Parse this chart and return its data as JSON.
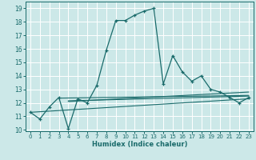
{
  "xlabel": "Humidex (Indice chaleur)",
  "background_color": "#cce8e8",
  "grid_color": "#ffffff",
  "line_color": "#1a6b6b",
  "xlim": [
    -0.5,
    23.5
  ],
  "ylim": [
    9.9,
    19.5
  ],
  "yticks": [
    10,
    11,
    12,
    13,
    14,
    15,
    16,
    17,
    18,
    19
  ],
  "xticks": [
    0,
    1,
    2,
    3,
    4,
    5,
    6,
    7,
    8,
    9,
    10,
    11,
    12,
    13,
    14,
    15,
    16,
    17,
    18,
    19,
    20,
    21,
    22,
    23
  ],
  "main_x": [
    0,
    1,
    2,
    3,
    4,
    5,
    6,
    7,
    8,
    9,
    10,
    11,
    12,
    13,
    14,
    15,
    16,
    17,
    18,
    19,
    20,
    21,
    22,
    23
  ],
  "main_y": [
    11.3,
    10.8,
    11.7,
    12.4,
    10.1,
    12.3,
    12.0,
    13.3,
    15.9,
    18.1,
    18.1,
    18.5,
    18.8,
    19.0,
    13.4,
    15.5,
    14.3,
    13.6,
    14.0,
    13.0,
    12.8,
    12.4,
    12.0,
    12.4
  ],
  "reg_lines": [
    {
      "x": [
        0,
        23
      ],
      "y": [
        11.3,
        12.3
      ]
    },
    {
      "x": [
        3,
        23
      ],
      "y": [
        12.35,
        12.55
      ]
    },
    {
      "x": [
        4,
        23
      ],
      "y": [
        12.15,
        12.5
      ]
    },
    {
      "x": [
        4,
        23
      ],
      "y": [
        12.1,
        12.8
      ]
    }
  ]
}
